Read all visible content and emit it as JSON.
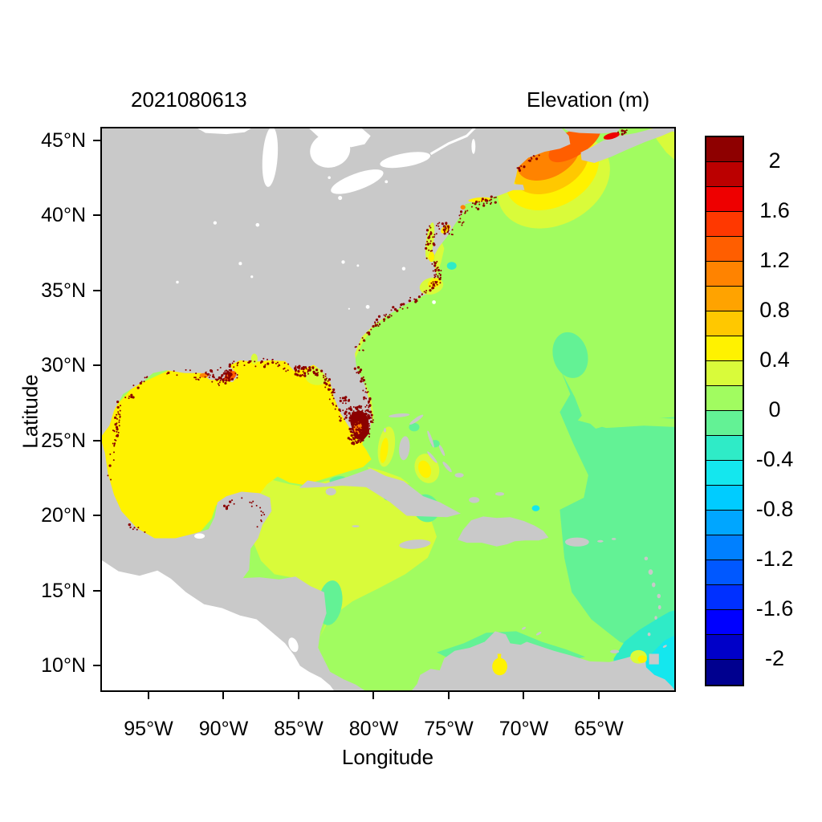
{
  "header": {
    "run_id": "2021080613",
    "colorbar_title": "Elevation (m)"
  },
  "axes": {
    "xlabel": "Longitude",
    "ylabel": "Latitude",
    "x_ticks": [
      {
        "lon": 95,
        "label": "95°W"
      },
      {
        "lon": 90,
        "label": "90°W"
      },
      {
        "lon": 85,
        "label": "85°W"
      },
      {
        "lon": 80,
        "label": "80°W"
      },
      {
        "lon": 75,
        "label": "75°W"
      },
      {
        "lon": 70,
        "label": "70°W"
      },
      {
        "lon": 65,
        "label": "65°W"
      }
    ],
    "y_ticks": [
      {
        "lat": 45,
        "label": "45°N"
      },
      {
        "lat": 40,
        "label": "40°N"
      },
      {
        "lat": 35,
        "label": "35°N"
      },
      {
        "lat": 30,
        "label": "30°N"
      },
      {
        "lat": 25,
        "label": "25°N"
      },
      {
        "lat": 20,
        "label": "20°N"
      },
      {
        "lat": 15,
        "label": "15°N"
      },
      {
        "lat": 10,
        "label": "10°N"
      }
    ]
  },
  "colorbar": {
    "min": -2.2,
    "max": 2.2,
    "cell_size": 0.2,
    "colors_bottom_to_top": [
      "#00008F",
      "#0000C8",
      "#0000FF",
      "#0030FF",
      "#0058FF",
      "#0080FF",
      "#00A6FF",
      "#00CCFF",
      "#14E7EE",
      "#2FEBC7",
      "#63F295",
      "#A1FC60",
      "#D9FB3A",
      "#FFF200",
      "#FFC800",
      "#FFA300",
      "#FF8300",
      "#FF5E00",
      "#FF3800",
      "#EE0000",
      "#BB0000",
      "#8E0000"
    ],
    "ticks": [
      {
        "value": 2,
        "label": "2"
      },
      {
        "value": 1.6,
        "label": "1.6"
      },
      {
        "value": 1.2,
        "label": "1.2"
      },
      {
        "value": 0.8,
        "label": "0.8"
      },
      {
        "value": 0.4,
        "label": "0.4"
      },
      {
        "value": 0,
        "label": "0"
      },
      {
        "value": -0.4,
        "label": "-0.4"
      },
      {
        "value": -0.8,
        "label": "-0.8"
      },
      {
        "value": -1.2,
        "label": "-1.2"
      },
      {
        "value": -1.6,
        "label": "-1.6"
      },
      {
        "value": -2,
        "label": "-2"
      }
    ]
  },
  "map": {
    "palette": {
      "base": "#A1FC60",
      "spring": "#63F295",
      "chart": "#D9FB3A",
      "yellow": "#FFF200",
      "yorange": "#FFC800",
      "orange": "#FF8300",
      "rorange": "#FF5E00",
      "red": "#EE0000",
      "darkred": "#8B0000",
      "turq": "#2FEBC7",
      "cyan": "#14E7EE",
      "land": "#C9C9C9",
      "nodata": "#FFFFFF"
    }
  },
  "chart_data": {
    "type": "heatmap",
    "title": "2021080613",
    "legend_title": "Elevation (m)",
    "xlabel": "Longitude",
    "ylabel": "Latitude",
    "x_tick_labels": [
      "95°W",
      "90°W",
      "85°W",
      "80°W",
      "75°W",
      "70°W",
      "65°W"
    ],
    "y_tick_labels": [
      "45°N",
      "40°N",
      "35°N",
      "30°N",
      "25°N",
      "20°N",
      "15°N",
      "10°N"
    ],
    "x_range_deg_west": [
      98.1,
      60.0
    ],
    "y_range_deg_north": [
      8.4,
      45.8
    ],
    "colorbar_range_m": [
      -2.2,
      2.2
    ],
    "colorbar_step_m": 0.2,
    "colorbar_tick_labels": [
      "2",
      "1.6",
      "1.2",
      "0.8",
      "0.4",
      "0",
      "-0.4",
      "-0.8",
      "-1.2",
      "-1.6",
      "-2"
    ],
    "regions": [
      {
        "region": "Atlantic open ocean",
        "elevation_m": 0.1,
        "color": "#A1FC60"
      },
      {
        "region": "Gulf of Mexico",
        "elevation_m": 0.5,
        "color": "#FFF200"
      },
      {
        "region": "Western Caribbean",
        "elevation_m": 0.3,
        "color": "#D9FB3A"
      },
      {
        "region": "Eastern Caribbean and central Atlantic patches",
        "elevation_m": -0.1,
        "color": "#63F295"
      },
      {
        "region": "Gulf of Maine",
        "elevation_m": 1.1,
        "color": "#FF8300"
      },
      {
        "region": "Gulf of Maine outer rings",
        "elevation_m": 0.6,
        "color": "#FFC800"
      },
      {
        "region": "Bay of Fundy",
        "elevation_m": 1.4,
        "color": "#FF5E00"
      },
      {
        "region": "Minas Basin sliver",
        "elevation_m": 1.7,
        "color": "#EE0000"
      },
      {
        "region": "Southeast corner near Trinidad",
        "elevation_m": -0.5,
        "color": "#14E7EE"
      },
      {
        "region": "South Florida coastal cells",
        "elevation_m": 2.1,
        "color": "#8B0000"
      },
      {
        "region": "Coastal stipple (high cells along shorelines)",
        "elevation_m": 2.1,
        "color": "#8B0000"
      },
      {
        "region": "Land",
        "elevation_m": null,
        "color": "#C9C9C9"
      },
      {
        "region": "No data (Pacific, Great Lakes)",
        "elevation_m": null,
        "color": "#FFFFFF"
      }
    ]
  }
}
